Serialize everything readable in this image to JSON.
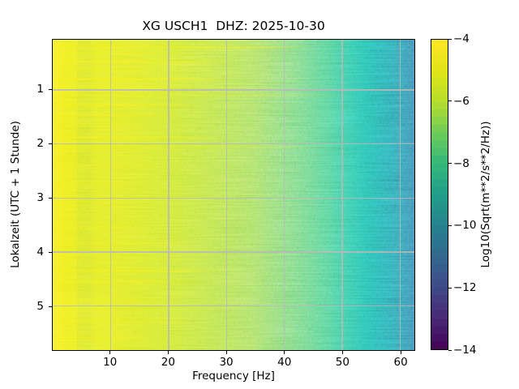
{
  "figure": {
    "background": "#ffffff"
  },
  "chart_data": {
    "type": "heatmap",
    "subtype": "seismic-spectrogram",
    "title": "XG USCH1  DHZ: 2025-10-30",
    "xlabel": "Frequency [Hz]",
    "ylabel": "Lokalzeit (UTC + 1 Stunde)",
    "xlim": [
      0,
      62.5
    ],
    "ylim_hours": [
      0.07,
      5.82
    ],
    "xticks": [
      10,
      20,
      30,
      40,
      50,
      60
    ],
    "yticks": [
      1,
      2,
      3,
      4,
      5
    ],
    "grid": true,
    "grid_color": "#b9b9b9",
    "colormap": "viridis",
    "colormap_stops": [
      [
        0.0,
        "#440154"
      ],
      [
        0.1,
        "#482878"
      ],
      [
        0.2,
        "#3e4a89"
      ],
      [
        0.3,
        "#31688e"
      ],
      [
        0.4,
        "#26828e"
      ],
      [
        0.5,
        "#1f9e89"
      ],
      [
        0.6,
        "#35b779"
      ],
      [
        0.7,
        "#6dcd59"
      ],
      [
        0.8,
        "#b5de2b"
      ],
      [
        0.9,
        "#e2e418"
      ],
      [
        1.0,
        "#fde725"
      ]
    ],
    "colorbar": {
      "label": "Log10(Sqrt(m**2/s**2/Hz))",
      "tick_values": [
        -4,
        -6,
        -8,
        -10,
        -12,
        -14
      ],
      "tick_labels": [
        "−4",
        "−6",
        "−8",
        "−10",
        "−12",
        "−14"
      ],
      "vmin": -14,
      "vmax": -4,
      "bands": 40
    },
    "spectrum_profile": [
      {
        "hz": 0.0,
        "value": -4.4
      },
      {
        "hz": 0.8,
        "value": -4.55
      },
      {
        "hz": 2.0,
        "value": -5.0
      },
      {
        "hz": 4.0,
        "value": -5.15
      },
      {
        "hz": 6.0,
        "value": -5.3
      },
      {
        "hz": 10.0,
        "value": -5.35
      },
      {
        "hz": 15.0,
        "value": -5.6
      },
      {
        "hz": 20.0,
        "value": -5.9
      },
      {
        "hz": 28.0,
        "value": -6.35
      },
      {
        "hz": 35.0,
        "value": -6.75
      },
      {
        "hz": 40.0,
        "value": -7.15
      },
      {
        "hz": 44.0,
        "value": -7.45
      },
      {
        "hz": 48.0,
        "value": -7.8
      },
      {
        "hz": 51.0,
        "value": -8.3
      },
      {
        "hz": 54.0,
        "value": -8.9
      },
      {
        "hz": 56.0,
        "value": -9.4
      },
      {
        "hz": 58.0,
        "value": -9.9
      },
      {
        "hz": 60.0,
        "value": -10.35
      },
      {
        "hz": 61.0,
        "value": -10.6
      },
      {
        "hz": 62.5,
        "value": -11.0
      }
    ],
    "time_streaks": [
      {
        "hour": 0.22,
        "to_hz": 45,
        "alpha": 0.5
      },
      {
        "hour": 0.33,
        "to_hz": 25,
        "alpha": 0.35
      },
      {
        "hour": 0.48,
        "to_hz": 32,
        "alpha": 0.55
      },
      {
        "hour": 0.62,
        "to_hz": 20,
        "alpha": 0.35
      },
      {
        "hour": 0.8,
        "to_hz": 30,
        "alpha": 0.6
      },
      {
        "hour": 0.93,
        "to_hz": 25,
        "alpha": 0.45
      },
      {
        "hour": 1.1,
        "to_hz": 52,
        "alpha": 0.25
      },
      {
        "hour": 1.28,
        "to_hz": 26,
        "alpha": 0.5
      },
      {
        "hour": 1.47,
        "to_hz": 22,
        "alpha": 0.4
      },
      {
        "hour": 1.62,
        "to_hz": 18,
        "alpha": 0.3
      },
      {
        "hour": 1.88,
        "to_hz": 30,
        "alpha": 0.45
      },
      {
        "hour": 2.06,
        "to_hz": 50,
        "alpha": 0.22
      },
      {
        "hour": 2.4,
        "to_hz": 20,
        "alpha": 0.3
      },
      {
        "hour": 2.74,
        "to_hz": 15,
        "alpha": 0.3
      },
      {
        "hour": 3.1,
        "to_hz": 14,
        "alpha": 0.3
      },
      {
        "hour": 3.55,
        "to_hz": 18,
        "alpha": 0.3
      },
      {
        "hour": 3.85,
        "to_hz": 25,
        "alpha": 0.4
      },
      {
        "hour": 4.35,
        "to_hz": 30,
        "alpha": 0.5
      },
      {
        "hour": 4.55,
        "to_hz": 28,
        "alpha": 0.45
      },
      {
        "hour": 4.9,
        "to_hz": 20,
        "alpha": 0.35
      },
      {
        "hour": 5.28,
        "to_hz": 25,
        "alpha": 0.4
      },
      {
        "hour": 5.58,
        "to_hz": 18,
        "alpha": 0.4
      }
    ],
    "patches": [
      {
        "name": "early-hours-bright-band",
        "hour_from": 0.07,
        "hour_to": 1.05,
        "hz_from": 0,
        "hz_to": 45,
        "color": "rgba(250,242,40,0.12)"
      },
      {
        "name": "bottom-left-bright",
        "hour_from": 4.75,
        "hour_to": 5.82,
        "hz_from": 0,
        "hz_to": 14,
        "color": "rgba(250,242,40,0.16)"
      },
      {
        "name": "low-freq-green-notch",
        "hour_from": 0.07,
        "hour_to": 5.82,
        "hz_from": 4.2,
        "hz_to": 7.6,
        "color": "rgba(60,160,60,0.10)"
      }
    ]
  }
}
